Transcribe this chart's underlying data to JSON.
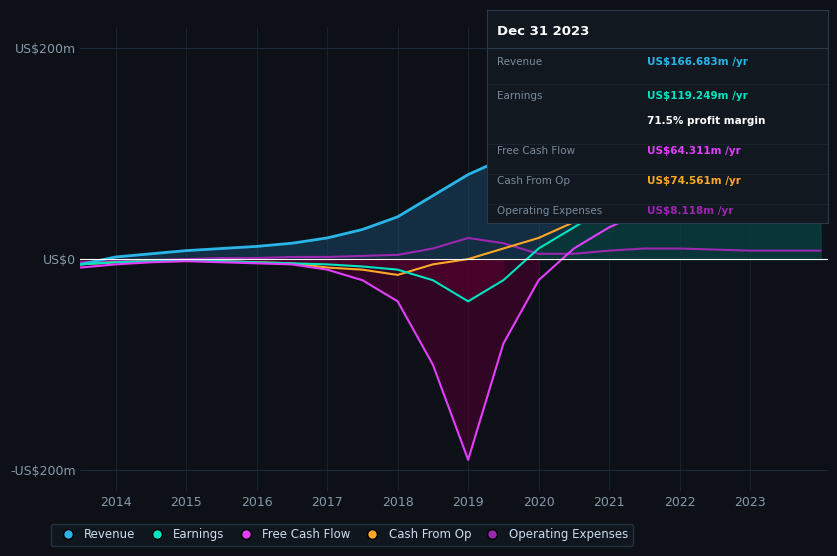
{
  "bg_color": "#0d1117",
  "plot_bg_color": "#0d1117",
  "grid_color": "#1e2a38",
  "zero_line_color": "#ffffff",
  "years": [
    2013.5,
    2014.0,
    2014.5,
    2015.0,
    2015.5,
    2016.0,
    2016.5,
    2017.0,
    2017.5,
    2018.0,
    2018.5,
    2019.0,
    2019.5,
    2020.0,
    2020.5,
    2021.0,
    2021.5,
    2022.0,
    2022.5,
    2023.0,
    2023.5,
    2024.0
  ],
  "revenue": [
    -5,
    2,
    5,
    8,
    10,
    12,
    15,
    20,
    28,
    40,
    60,
    80,
    95,
    100,
    115,
    130,
    140,
    135,
    145,
    155,
    167,
    167
  ],
  "earnings": [
    -5,
    -3,
    -2,
    -1,
    -2,
    -3,
    -4,
    -5,
    -7,
    -10,
    -20,
    -40,
    -20,
    10,
    30,
    50,
    65,
    70,
    75,
    80,
    119,
    119
  ],
  "free_cash_flow": [
    -8,
    -5,
    -3,
    -2,
    -3,
    -4,
    -5,
    -10,
    -20,
    -40,
    -100,
    -190,
    -80,
    -20,
    10,
    30,
    45,
    55,
    58,
    60,
    64,
    64
  ],
  "cash_from_op": [
    -5,
    -3,
    -2,
    -1,
    -2,
    -3,
    -4,
    -8,
    -10,
    -15,
    -5,
    0,
    10,
    20,
    35,
    55,
    75,
    80,
    72,
    65,
    75,
    75
  ],
  "operating_expenses": [
    -3,
    -2,
    -1,
    0,
    1,
    1,
    2,
    2,
    3,
    4,
    10,
    20,
    15,
    5,
    5,
    8,
    10,
    10,
    9,
    8,
    8,
    8
  ],
  "revenue_color": "#29b5e8",
  "earnings_color": "#00e5c0",
  "free_cash_flow_color": "#e040fb",
  "cash_from_op_color": "#ffa726",
  "operating_expenses_color": "#9c27b0",
  "revenue_fill": "#1a4a6e",
  "earnings_fill_pos": "#003d30",
  "earnings_fill_neg": "#5a0020",
  "free_cash_flow_fill_neg": "#4a0030",
  "ylim": [
    -220,
    220
  ],
  "yticks": [
    -200,
    0,
    200
  ],
  "ytick_labels": [
    "-US$200m",
    "US$0",
    "US$200m"
  ],
  "xlim": [
    2013.5,
    2024.1
  ],
  "xticks": [
    2014,
    2015,
    2016,
    2017,
    2018,
    2019,
    2020,
    2021,
    2022,
    2023
  ],
  "legend_labels": [
    "Revenue",
    "Earnings",
    "Free Cash Flow",
    "Cash From Op",
    "Operating Expenses"
  ],
  "legend_colors": [
    "#29b5e8",
    "#00e5c0",
    "#e040fb",
    "#ffa726",
    "#9c27b0"
  ],
  "info_box": {
    "date": "Dec 31 2023",
    "revenue_label": "Revenue",
    "revenue_val": "US$166.683m /yr",
    "earnings_label": "Earnings",
    "earnings_val": "US$119.249m /yr",
    "profit_margin": "71.5% profit margin",
    "fcf_label": "Free Cash Flow",
    "fcf_val": "US$64.311m /yr",
    "cash_op_label": "Cash From Op",
    "cash_op_val": "US$74.561m /yr",
    "op_exp_label": "Operating Expenses",
    "op_exp_val": "US$8.118m /yr",
    "revenue_color": "#29b5e8",
    "earnings_color": "#00e5c0",
    "fcf_color": "#e040fb",
    "cash_op_color": "#ffa726",
    "op_exp_color": "#9c27b0",
    "label_color": "#7a8a9a",
    "date_color": "#ffffff",
    "margin_color": "#ffffff",
    "box_bg": "#111820",
    "box_border": "#2a3a4a",
    "divider_color": "#2a3a4a"
  }
}
